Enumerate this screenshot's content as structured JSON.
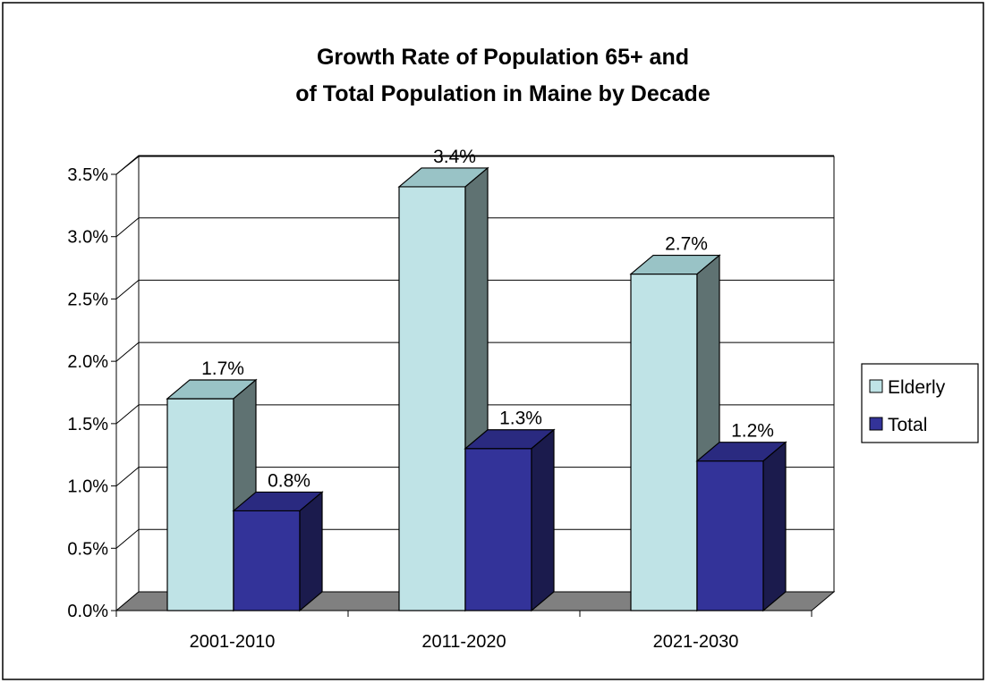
{
  "chart_data": {
    "type": "bar",
    "title_lines": [
      "Growth Rate of Population 65+ and",
      "of Total Population in Maine by Decade"
    ],
    "categories": [
      "2001-2010",
      "2011-2020",
      "2021-2030"
    ],
    "series": [
      {
        "name": "Elderly",
        "values": [
          1.7,
          3.4,
          2.7
        ],
        "labels": [
          "1.7%",
          "3.4%",
          "2.7%"
        ],
        "color": "#bfe3e6"
      },
      {
        "name": "Total",
        "values": [
          0.8,
          1.3,
          1.2
        ],
        "labels": [
          "0.8%",
          "1.3%",
          "1.2%"
        ],
        "color": "#333399"
      }
    ],
    "y_ticks": [
      "0.0%",
      "0.5%",
      "1.0%",
      "1.5%",
      "2.0%",
      "2.5%",
      "3.0%",
      "3.5%"
    ],
    "ylim": [
      0,
      3.5
    ],
    "xlabel": "",
    "ylabel": "",
    "grid": true,
    "legend": "right",
    "style": "3d-clustered-column"
  }
}
